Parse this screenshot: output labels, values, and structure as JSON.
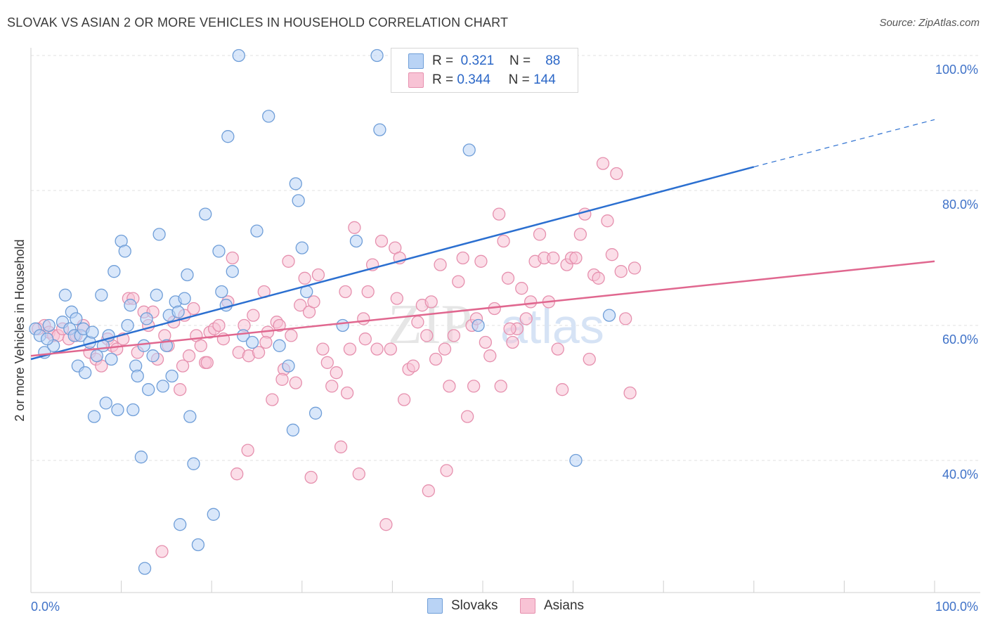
{
  "header": {
    "title": "SLOVAK VS ASIAN 2 OR MORE VEHICLES IN HOUSEHOLD CORRELATION CHART",
    "source": "Source: ZipAtlas.com"
  },
  "watermark": {
    "part1": "ZIP",
    "part2": "atlas"
  },
  "legend": {
    "rows": [
      {
        "r_label": "R =",
        "r_value": "0.321",
        "n_label": "N =",
        "n_value": "88"
      },
      {
        "r_label": "R =",
        "r_value": "0.344",
        "n_label": "N =",
        "n_value": "144"
      }
    ]
  },
  "chart_data": {
    "type": "scatter",
    "title": "SLOVAK VS ASIAN 2 OR MORE VEHICLES IN HOUSEHOLD CORRELATION CHART",
    "xlabel": "",
    "ylabel": "2 or more Vehicles in Household",
    "xlim": [
      0,
      100
    ],
    "ylim": [
      20,
      102
    ],
    "x_tick_labels": [
      "0.0%",
      "100.0%"
    ],
    "y_ticks": [
      40,
      60,
      80,
      100
    ],
    "y_tick_labels": [
      "40.0%",
      "60.0%",
      "80.0%",
      "100.0%"
    ],
    "grid": true,
    "legend_position": "bottom",
    "colors": {
      "slovaks_fill": "#b9d3f5",
      "slovaks_stroke": "#6f9ed8",
      "slovaks_line": "#2b6fd0",
      "asians_fill": "#f8c3d5",
      "asians_stroke": "#e690ae",
      "asians_line": "#e0678f"
    },
    "series": [
      {
        "name": "Slovaks",
        "r": 0.321,
        "n": 88,
        "trend": {
          "x0": 0,
          "y0": 55.0,
          "x1": 80,
          "y1": 83.5,
          "dash_x1": 100,
          "dash_y1": 90.5
        },
        "points": [
          [
            0.5,
            59.5
          ],
          [
            1.0,
            58.5
          ],
          [
            1.5,
            56.0
          ],
          [
            2.0,
            60.0
          ],
          [
            2.5,
            57.0
          ],
          [
            1.8,
            58.0
          ],
          [
            3.5,
            60.5
          ],
          [
            3.8,
            64.5
          ],
          [
            4.3,
            59.5
          ],
          [
            4.5,
            62.0
          ],
          [
            4.8,
            58.5
          ],
          [
            5.0,
            61.0
          ],
          [
            5.2,
            54.0
          ],
          [
            5.5,
            58.5
          ],
          [
            5.8,
            59.5
          ],
          [
            6.0,
            53.0
          ],
          [
            6.5,
            57.5
          ],
          [
            6.8,
            59.0
          ],
          [
            7.0,
            46.5
          ],
          [
            7.3,
            55.5
          ],
          [
            7.8,
            64.5
          ],
          [
            8.0,
            57.0
          ],
          [
            8.3,
            48.5
          ],
          [
            8.6,
            58.5
          ],
          [
            8.9,
            55.0
          ],
          [
            9.2,
            68.0
          ],
          [
            9.6,
            47.5
          ],
          [
            10.0,
            72.5
          ],
          [
            10.4,
            71.0
          ],
          [
            10.7,
            60.0
          ],
          [
            11.0,
            63.0
          ],
          [
            11.3,
            47.5
          ],
          [
            11.6,
            54.0
          ],
          [
            11.8,
            52.5
          ],
          [
            12.2,
            40.5
          ],
          [
            12.5,
            57.0
          ],
          [
            12.8,
            61.0
          ],
          [
            13.0,
            50.5
          ],
          [
            13.5,
            55.5
          ],
          [
            13.9,
            64.5
          ],
          [
            14.2,
            73.5
          ],
          [
            14.6,
            51.0
          ],
          [
            15.0,
            57.0
          ],
          [
            15.3,
            61.5
          ],
          [
            15.6,
            52.5
          ],
          [
            16.0,
            63.5
          ],
          [
            16.3,
            62.0
          ],
          [
            16.5,
            30.5
          ],
          [
            17.0,
            64.0
          ],
          [
            17.3,
            67.5
          ],
          [
            17.6,
            46.5
          ],
          [
            18.0,
            39.5
          ],
          [
            18.5,
            27.5
          ],
          [
            19.3,
            76.5
          ],
          [
            20.2,
            32.0
          ],
          [
            20.8,
            71.0
          ],
          [
            21.1,
            65.0
          ],
          [
            21.6,
            63.0
          ],
          [
            21.8,
            88.0
          ],
          [
            22.3,
            68.0
          ],
          [
            23.0,
            100.0
          ],
          [
            23.5,
            58.5
          ],
          [
            24.5,
            57.5
          ],
          [
            25.0,
            74.0
          ],
          [
            26.3,
            91.0
          ],
          [
            27.5,
            57.0
          ],
          [
            28.5,
            54.0
          ],
          [
            29.0,
            44.5
          ],
          [
            29.3,
            81.0
          ],
          [
            29.6,
            78.5
          ],
          [
            30.0,
            71.5
          ],
          [
            30.5,
            65.0
          ],
          [
            31.5,
            47.0
          ],
          [
            34.5,
            60.0
          ],
          [
            36.0,
            72.5
          ],
          [
            38.3,
            100.0
          ],
          [
            38.6,
            89.0
          ],
          [
            48.5,
            86.0
          ],
          [
            49.5,
            60.0
          ],
          [
            60.3,
            40.0
          ],
          [
            64.0,
            61.5
          ],
          [
            12.6,
            24.0
          ]
        ]
      },
      {
        "name": "Asians",
        "r": 0.344,
        "n": 144,
        "trend": {
          "x0": 0,
          "y0": 55.5,
          "x1": 100,
          "y1": 69.5
        },
        "points": [
          [
            0.8,
            59.5
          ],
          [
            1.5,
            60.0
          ],
          [
            2.0,
            59.0
          ],
          [
            2.5,
            58.5
          ],
          [
            3.0,
            58.5
          ],
          [
            3.5,
            59.5
          ],
          [
            4.2,
            58.0
          ],
          [
            5.0,
            58.5
          ],
          [
            5.8,
            60.0
          ],
          [
            6.5,
            56.0
          ],
          [
            7.2,
            55.0
          ],
          [
            7.8,
            54.0
          ],
          [
            8.5,
            58.0
          ],
          [
            9.0,
            57.0
          ],
          [
            9.5,
            56.5
          ],
          [
            10.2,
            58.0
          ],
          [
            10.8,
            64.0
          ],
          [
            11.3,
            64.0
          ],
          [
            11.8,
            56.0
          ],
          [
            12.5,
            62.0
          ],
          [
            13.0,
            60.0
          ],
          [
            13.5,
            62.0
          ],
          [
            14.0,
            55.0
          ],
          [
            14.8,
            58.5
          ],
          [
            15.2,
            57.0
          ],
          [
            15.8,
            60.5
          ],
          [
            16.5,
            50.5
          ],
          [
            17.0,
            61.5
          ],
          [
            17.5,
            55.5
          ],
          [
            18.0,
            62.5
          ],
          [
            18.3,
            58.5
          ],
          [
            18.8,
            57.0
          ],
          [
            19.3,
            54.5
          ],
          [
            19.8,
            59.0
          ],
          [
            20.3,
            59.5
          ],
          [
            20.8,
            60.0
          ],
          [
            21.3,
            58.0
          ],
          [
            21.8,
            63.5
          ],
          [
            22.3,
            70.0
          ],
          [
            23.0,
            56.0
          ],
          [
            23.6,
            60.0
          ],
          [
            24.1,
            55.5
          ],
          [
            24.6,
            61.5
          ],
          [
            25.2,
            56.0
          ],
          [
            25.8,
            65.0
          ],
          [
            26.2,
            59.0
          ],
          [
            26.7,
            49.0
          ],
          [
            27.2,
            60.5
          ],
          [
            27.5,
            60.0
          ],
          [
            28.0,
            53.5
          ],
          [
            28.5,
            69.5
          ],
          [
            28.8,
            58.5
          ],
          [
            29.3,
            51.5
          ],
          [
            29.8,
            63.0
          ],
          [
            30.3,
            67.0
          ],
          [
            30.8,
            62.0
          ],
          [
            31.3,
            63.5
          ],
          [
            31.8,
            67.5
          ],
          [
            32.3,
            56.5
          ],
          [
            32.8,
            54.5
          ],
          [
            33.3,
            51.0
          ],
          [
            33.8,
            53.0
          ],
          [
            34.3,
            42.0
          ],
          [
            34.8,
            65.0
          ],
          [
            35.3,
            56.5
          ],
          [
            35.8,
            74.5
          ],
          [
            36.3,
            38.0
          ],
          [
            36.8,
            61.0
          ],
          [
            37.3,
            65.0
          ],
          [
            37.8,
            69.0
          ],
          [
            38.3,
            56.5
          ],
          [
            38.8,
            72.5
          ],
          [
            39.3,
            30.5
          ],
          [
            39.8,
            56.5
          ],
          [
            40.3,
            71.5
          ],
          [
            40.8,
            70.0
          ],
          [
            41.3,
            49.0
          ],
          [
            41.8,
            53.5
          ],
          [
            42.3,
            54.0
          ],
          [
            42.8,
            60.5
          ],
          [
            43.3,
            63.0
          ],
          [
            43.8,
            58.5
          ],
          [
            44.3,
            63.5
          ],
          [
            44.8,
            55.0
          ],
          [
            45.3,
            69.0
          ],
          [
            45.8,
            56.5
          ],
          [
            46.3,
            51.0
          ],
          [
            46.8,
            58.5
          ],
          [
            47.3,
            66.5
          ],
          [
            47.8,
            70.0
          ],
          [
            48.3,
            46.5
          ],
          [
            48.8,
            60.0
          ],
          [
            49.3,
            61.0
          ],
          [
            49.8,
            69.5
          ],
          [
            50.3,
            57.5
          ],
          [
            50.8,
            55.5
          ],
          [
            51.3,
            62.5
          ],
          [
            51.8,
            76.5
          ],
          [
            52.3,
            72.5
          ],
          [
            52.8,
            67.0
          ],
          [
            53.3,
            57.5
          ],
          [
            53.8,
            59.5
          ],
          [
            54.3,
            65.5
          ],
          [
            54.8,
            61.0
          ],
          [
            55.3,
            63.5
          ],
          [
            55.8,
            69.5
          ],
          [
            56.3,
            73.5
          ],
          [
            56.8,
            70.0
          ],
          [
            57.3,
            63.5
          ],
          [
            57.8,
            70.0
          ],
          [
            58.3,
            56.5
          ],
          [
            58.8,
            50.5
          ],
          [
            59.3,
            69.0
          ],
          [
            59.8,
            70.0
          ],
          [
            60.3,
            70.0
          ],
          [
            60.8,
            73.5
          ],
          [
            61.3,
            76.5
          ],
          [
            61.8,
            55.0
          ],
          [
            62.3,
            67.5
          ],
          [
            62.8,
            67.0
          ],
          [
            63.3,
            84.0
          ],
          [
            63.8,
            75.5
          ],
          [
            64.3,
            70.5
          ],
          [
            64.8,
            82.5
          ],
          [
            65.3,
            68.0
          ],
          [
            65.8,
            61.0
          ],
          [
            66.3,
            50.0
          ],
          [
            66.8,
            68.5
          ],
          [
            22.8,
            38.0
          ],
          [
            19.5,
            54.5
          ],
          [
            14.5,
            26.5
          ],
          [
            16.8,
            54.0
          ],
          [
            24.0,
            41.5
          ],
          [
            26.0,
            57.5
          ],
          [
            27.8,
            52.0
          ],
          [
            31.0,
            37.5
          ],
          [
            35.0,
            50.0
          ],
          [
            37.0,
            58.0
          ],
          [
            40.5,
            64.0
          ],
          [
            44.0,
            35.5
          ],
          [
            46.0,
            38.5
          ],
          [
            49.0,
            51.0
          ],
          [
            52.0,
            51.0
          ],
          [
            53.0,
            59.5
          ]
        ]
      }
    ]
  },
  "bottom_legend": {
    "items": [
      "Slovaks",
      "Asians"
    ]
  }
}
